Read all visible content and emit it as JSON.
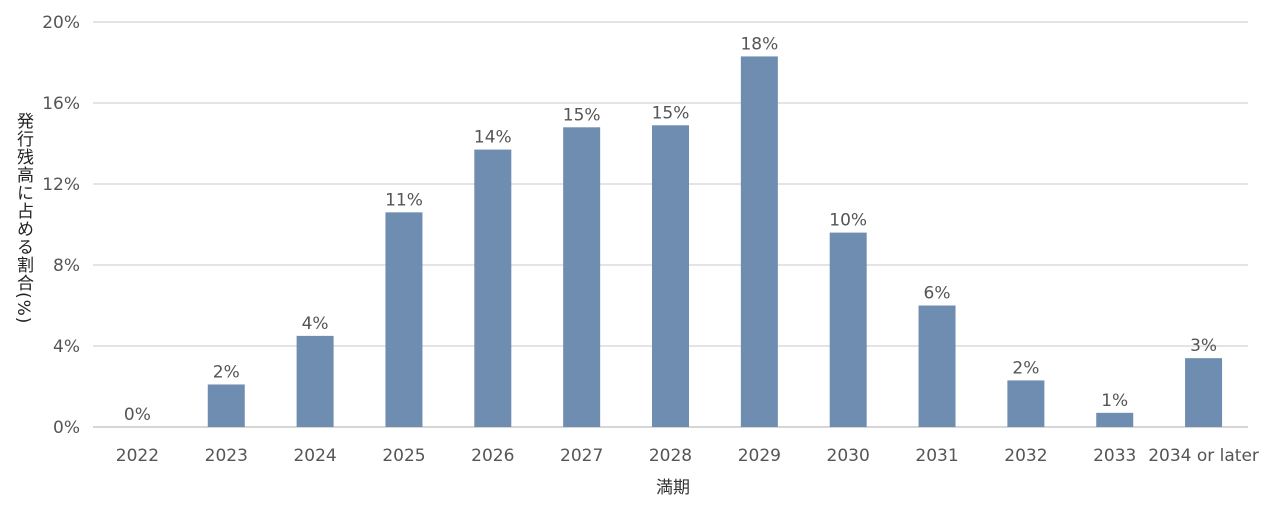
{
  "chart_data": {
    "type": "bar",
    "categories": [
      "2022",
      "2023",
      "2024",
      "2025",
      "2026",
      "2027",
      "2028",
      "2029",
      "2030",
      "2031",
      "2032",
      "2033",
      "2034 or later"
    ],
    "values": [
      0,
      2.1,
      4.5,
      10.6,
      13.7,
      14.8,
      14.9,
      18.3,
      9.6,
      6.0,
      2.3,
      0.7,
      3.4
    ],
    "data_labels": [
      "0%",
      "2%",
      "4%",
      "11%",
      "14%",
      "15%",
      "15%",
      "18%",
      "10%",
      "6%",
      "2%",
      "1%",
      "3%"
    ],
    "ylim": [
      0,
      20
    ],
    "yticks": [
      0,
      4,
      8,
      12,
      16,
      20
    ],
    "ytick_labels": [
      "0%",
      "4%",
      "8%",
      "12%",
      "16%",
      "20%"
    ],
    "xlabel": "満期",
    "ylabel": "発行残高に占める割合(%)",
    "bar_color": "#6f8cb1",
    "grid": true
  }
}
